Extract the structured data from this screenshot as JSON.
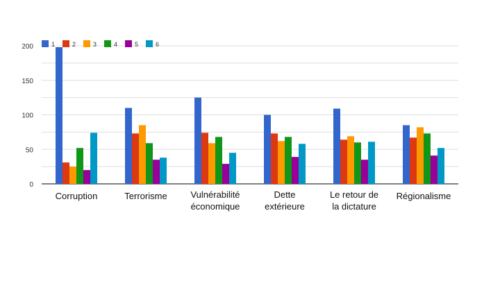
{
  "chart_data": {
    "type": "bar",
    "categories": [
      [
        "Corruption"
      ],
      [
        "Terrorisme"
      ],
      [
        "Vulnérabilité",
        "économique"
      ],
      [
        "Dette",
        "extérieure"
      ],
      [
        "Le retour de",
        "la dictature"
      ],
      [
        "Régionalisme"
      ]
    ],
    "series": [
      {
        "name": "1",
        "color": "#3366cc",
        "values": [
          198,
          110,
          125,
          100,
          109,
          85
        ]
      },
      {
        "name": "2",
        "color": "#dc3912",
        "values": [
          31,
          73,
          74,
          73,
          64,
          67
        ]
      },
      {
        "name": "3",
        "color": "#ff9900",
        "values": [
          25,
          85,
          59,
          62,
          69,
          82
        ]
      },
      {
        "name": "4",
        "color": "#109618",
        "values": [
          52,
          59,
          68,
          68,
          60,
          73
        ]
      },
      {
        "name": "5",
        "color": "#990099",
        "values": [
          20,
          35,
          29,
          39,
          35,
          41
        ]
      },
      {
        "name": "6",
        "color": "#0099c6",
        "values": [
          74,
          38,
          45,
          58,
          61,
          52
        ]
      }
    ],
    "yticks": [
      0,
      50,
      100,
      150,
      200
    ],
    "ylim": [
      0,
      200
    ],
    "grid": true,
    "legend_position": "top-left",
    "title": "",
    "xlabel": "",
    "ylabel": ""
  }
}
